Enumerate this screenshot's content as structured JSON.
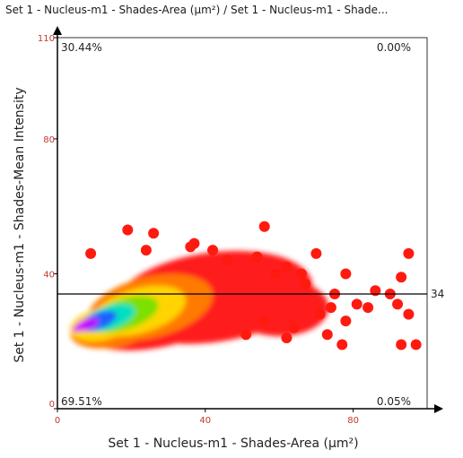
{
  "title": "Set 1 - Nucleus-m1 - Shades-Area (µm²) / Set 1 - Nucleus-m1 - Shade...",
  "chart_data": {
    "type": "scatter",
    "title": "Set 1 - Nucleus-m1 - Shades-Area (µm²) / Set 1 - Nucleus-m1 - Shade...",
    "xlabel": "Set 1 - Nucleus-m1 - Shades-Area (µm²)",
    "ylabel": "Set 1 - Nucleus-m1 - Shades-Mean Intensity",
    "xlim": [
      0,
      100
    ],
    "ylim": [
      0,
      110
    ],
    "x_ticks": [
      "0",
      "40",
      "80"
    ],
    "y_ticks": [
      "0",
      "40",
      "80",
      "110"
    ],
    "gate_line": {
      "y": 34,
      "label": "34"
    },
    "quadrants": {
      "top_left": "30.44%",
      "top_right": "0.00%",
      "bottom_left": "69.51%",
      "bottom_right": "0.05%"
    },
    "density_colormap": [
      "#ff1a1a",
      "#ff7a00",
      "#ffd400",
      "#7be000",
      "#00e0c0",
      "#1a60ff",
      "#c000ff"
    ],
    "outliers": [
      [
        19,
        53
      ],
      [
        26,
        52
      ],
      [
        37,
        49
      ],
      [
        36,
        48
      ],
      [
        24,
        47
      ],
      [
        9,
        46
      ],
      [
        56,
        54
      ],
      [
        46,
        44
      ],
      [
        42,
        47
      ],
      [
        54,
        45
      ],
      [
        59,
        40
      ],
      [
        70,
        46
      ],
      [
        62,
        42
      ],
      [
        66,
        40
      ],
      [
        67,
        37
      ],
      [
        78,
        40
      ],
      [
        75,
        34
      ],
      [
        86,
        35
      ],
      [
        90,
        34
      ],
      [
        84,
        30
      ],
      [
        81,
        31
      ],
      [
        74,
        30
      ],
      [
        71,
        28
      ],
      [
        78,
        26
      ],
      [
        64,
        24
      ],
      [
        56,
        26
      ],
      [
        51,
        22
      ],
      [
        73,
        22
      ],
      [
        95,
        46
      ],
      [
        93,
        39
      ],
      [
        92,
        31
      ],
      [
        95,
        28
      ],
      [
        93,
        19
      ],
      [
        97,
        19
      ],
      [
        77,
        19
      ],
      [
        62,
        21
      ]
    ]
  }
}
